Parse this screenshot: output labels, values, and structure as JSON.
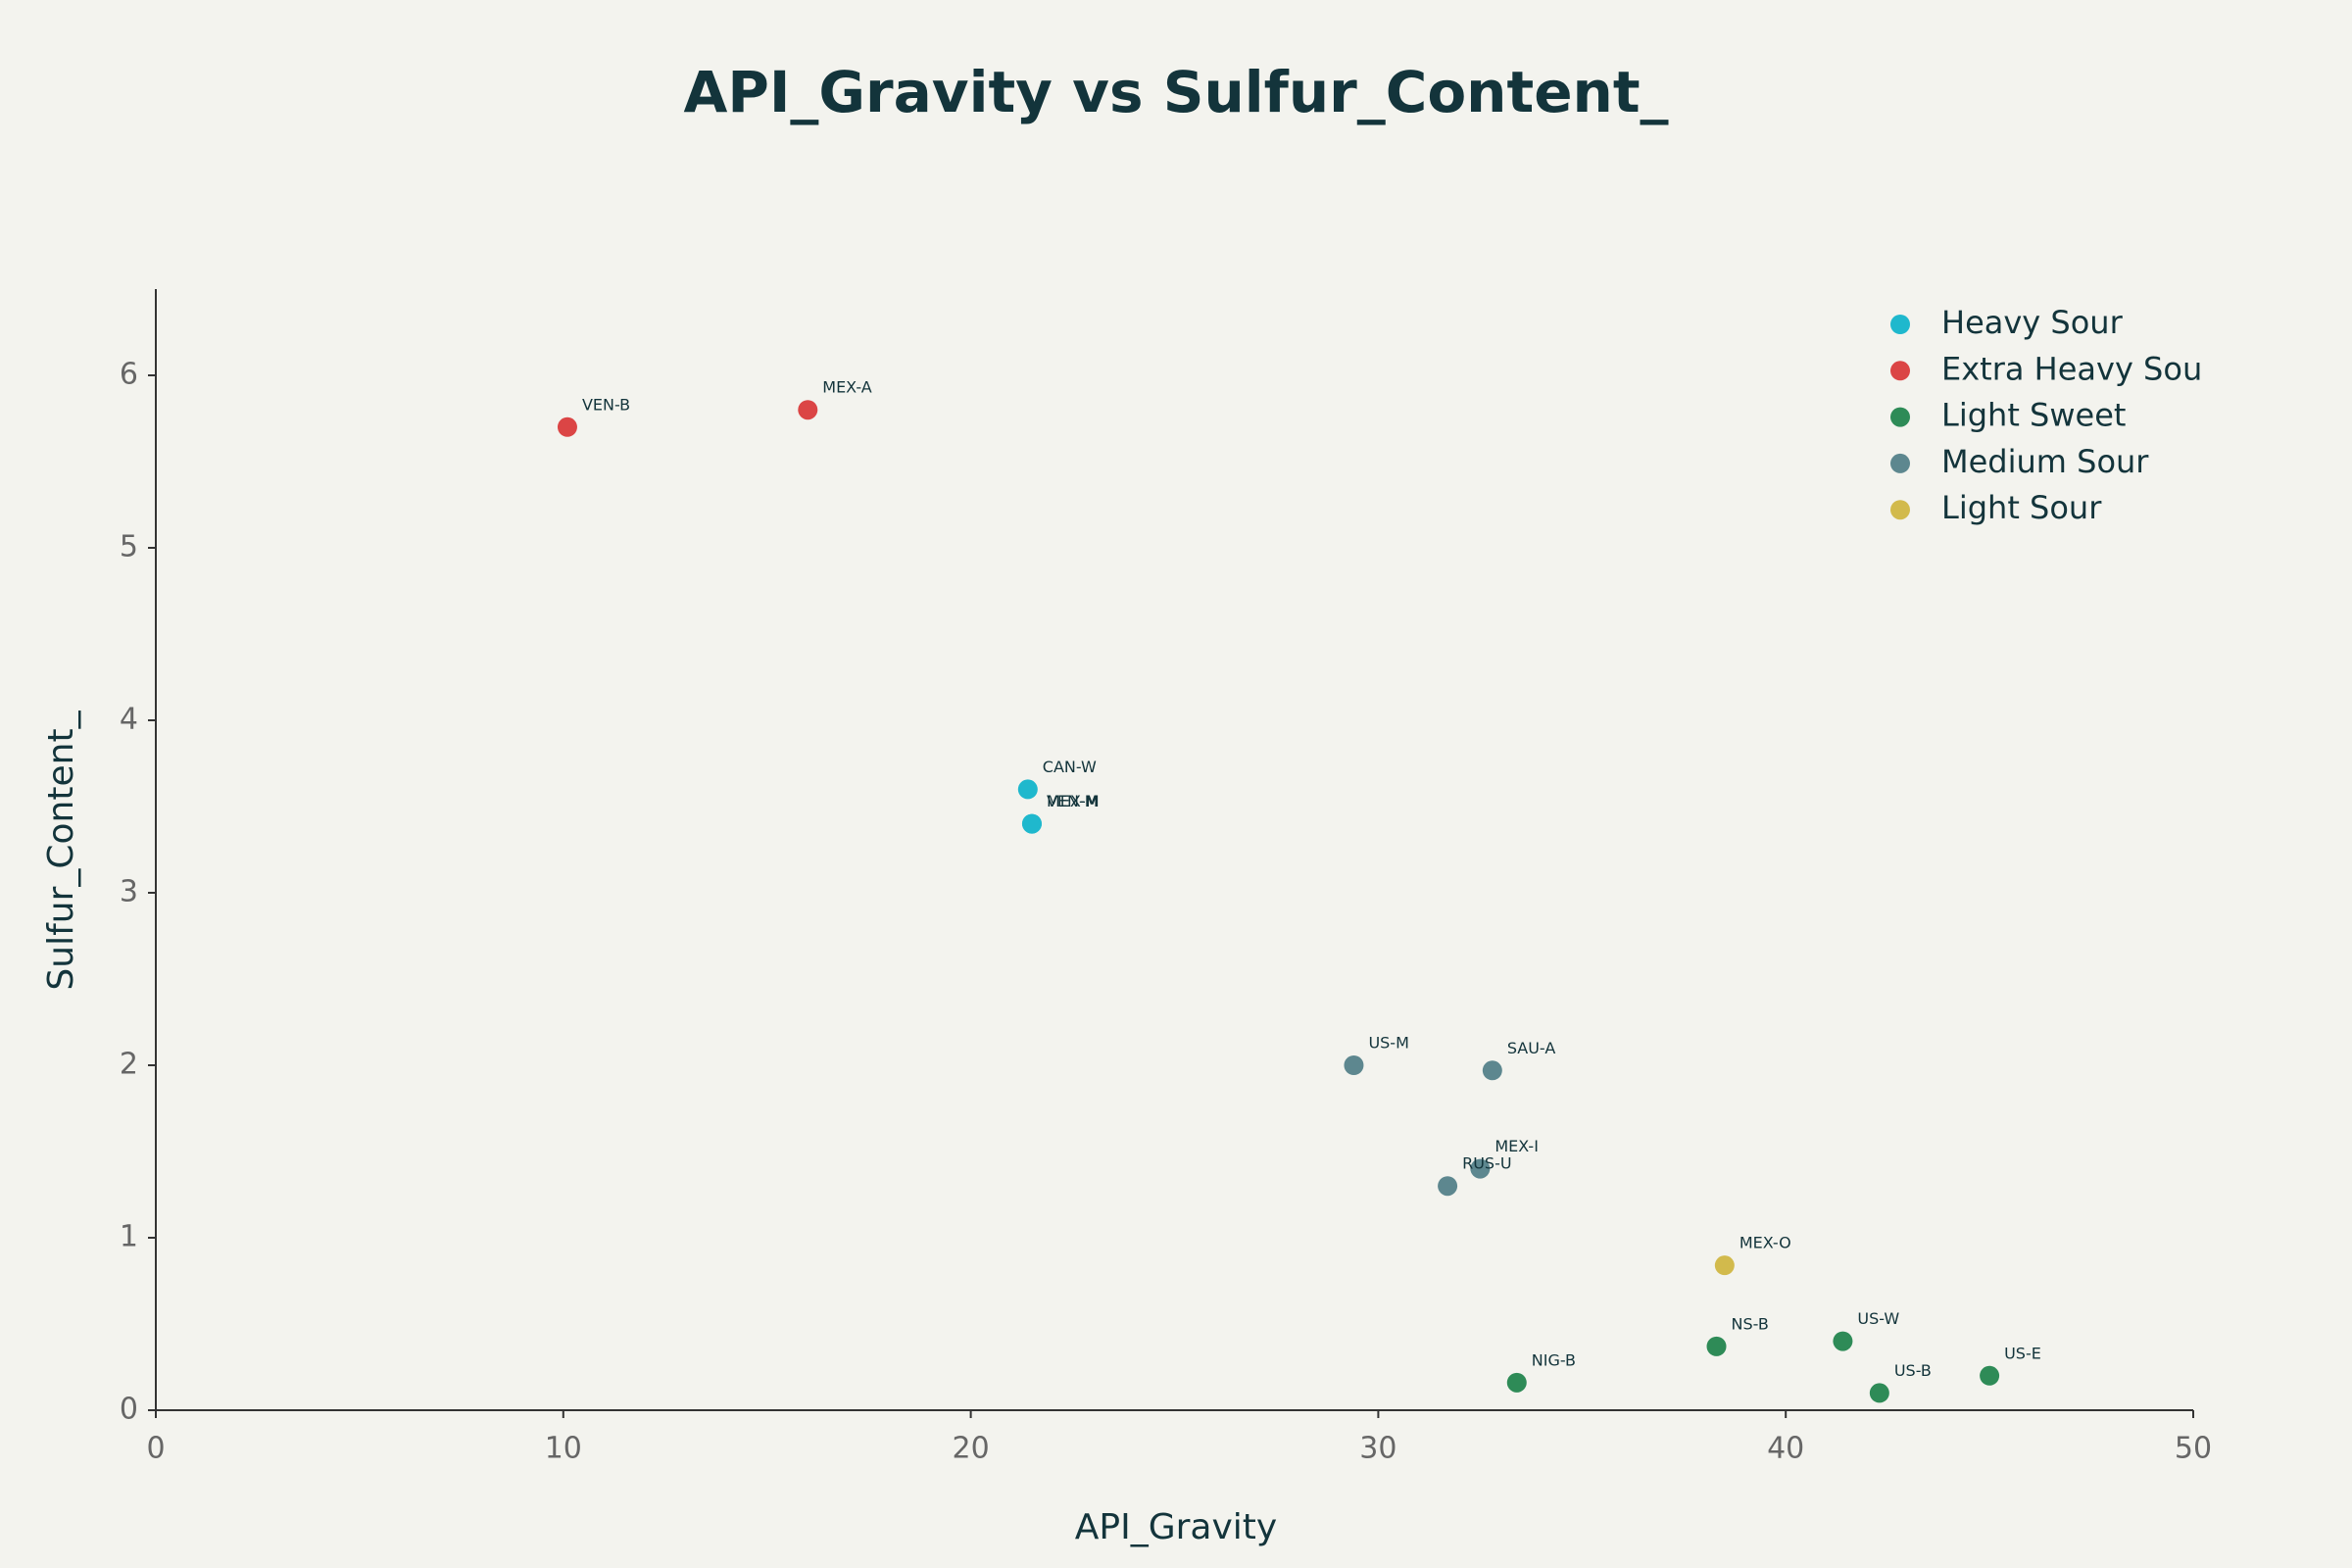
{
  "chart_data": {
    "type": "scatter",
    "title": "API_Gravity vs Sulfur_Content_",
    "x_label": "API_Gravity",
    "y_label": "Sulfur_Content_",
    "xlim": [
      0,
      50
    ],
    "xticks": [
      0,
      10,
      20,
      30,
      40,
      50
    ],
    "ylim": [
      0,
      6.5
    ],
    "yticks": [
      0,
      1,
      2,
      3,
      4,
      5,
      6
    ],
    "grid": false,
    "legend": "top-right",
    "series": [
      {
        "name": "Heavy Sour",
        "color": "#1fb8cd",
        "x": [
          21.4,
          21.5,
          21.5
        ],
        "y": [
          3.6,
          3.4,
          3.4
        ],
        "labels": [
          "CAN-W",
          "VEN-M",
          "MEX-M"
        ]
      },
      {
        "name": "Extra Heavy Sou",
        "color": "#db4545",
        "x": [
          10.1,
          16.0
        ],
        "y": [
          5.7,
          5.8
        ],
        "labels": [
          "VEN-B",
          "MEX-A"
        ]
      },
      {
        "name": "Light Sweet",
        "color": "#2e8b57",
        "x": [
          33.4,
          38.3,
          41.4,
          42.3,
          45.0
        ],
        "y": [
          0.16,
          0.37,
          0.4,
          0.1,
          0.2
        ],
        "labels": [
          "NIG-B",
          "NS-B",
          "US-W",
          "US-B",
          "US-E"
        ]
      },
      {
        "name": "Medium Sour",
        "color": "#5d878f",
        "x": [
          29.4,
          32.8,
          32.5,
          31.7
        ],
        "y": [
          2.0,
          1.97,
          1.4,
          1.3
        ],
        "labels": [
          "US-M",
          "SAU-A",
          "MEX-I",
          "RUS-U"
        ]
      },
      {
        "name": "Light Sour",
        "color": "#d2ba4c",
        "x": [
          38.5
        ],
        "y": [
          0.84
        ],
        "labels": [
          "MEX-O"
        ]
      }
    ]
  }
}
